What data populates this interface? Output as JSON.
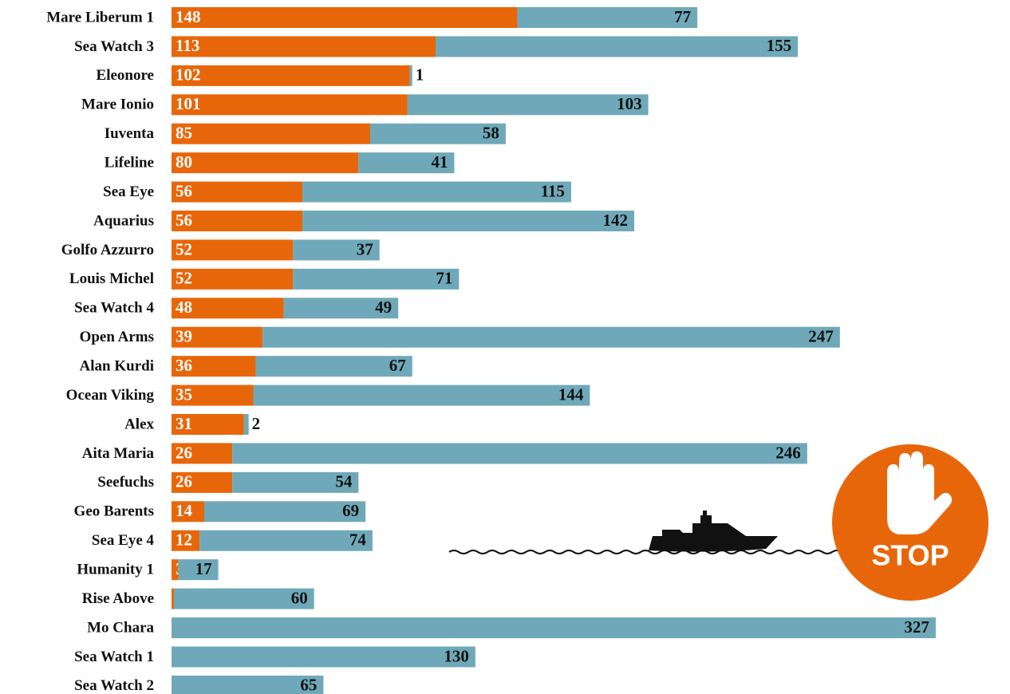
{
  "chart_data": {
    "type": "stacked-bar-horizontal",
    "categories": [
      "Mare Liberum 1",
      "Sea Watch 3",
      "Eleonore",
      "Mare Ionio",
      "Iuventa",
      "Lifeline",
      "Sea Eye",
      "Aquarius",
      "Golfo Azzurro",
      "Louis Michel",
      "Sea Watch 4",
      "Open Arms",
      "Alan Kurdi",
      "Ocean Viking",
      "Alex",
      "Aita Maria",
      "Seefuchs",
      "Geo Barents",
      "Sea Eye 4",
      "Humanity 1",
      "Rise Above",
      "Mo Chara",
      "Sea Watch 1",
      "Sea Watch 2"
    ],
    "series": [
      {
        "color": "#e8660a",
        "values": [
          148,
          113,
          102,
          101,
          85,
          80,
          56,
          56,
          52,
          52,
          48,
          39,
          36,
          35,
          31,
          26,
          26,
          14,
          12,
          3,
          1,
          null,
          null,
          null
        ]
      },
      {
        "color": "#6fa9b9",
        "values": [
          77,
          155,
          1,
          103,
          58,
          41,
          115,
          142,
          37,
          71,
          49,
          247,
          67,
          144,
          2,
          246,
          54,
          69,
          74,
          17,
          60,
          327,
          130,
          65
        ]
      }
    ],
    "xlim": [
      0,
      340
    ]
  },
  "stop_sign": "STOP"
}
